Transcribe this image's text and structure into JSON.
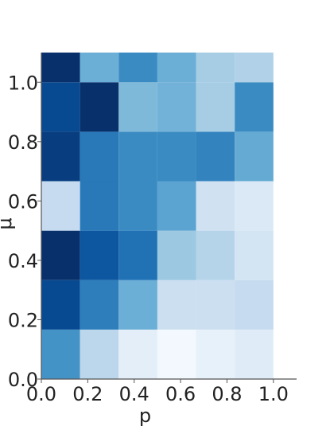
{
  "chart_data": {
    "type": "heatmap",
    "title": "",
    "xlabel": "p",
    "ylabel": "μ",
    "xlim": [
      0.0,
      1.1
    ],
    "ylim": [
      0.0,
      1.1
    ],
    "x_ticks": [
      "0.0",
      "0.2",
      "0.4",
      "0.6",
      "0.8",
      "1.0"
    ],
    "y_ticks": [
      "0.0",
      "0.2",
      "0.4",
      "0.6",
      "0.8",
      "1.0"
    ],
    "x_edges": [
      0.0,
      0.1667,
      0.3333,
      0.5,
      0.6667,
      0.8333,
      1.0
    ],
    "y_edges": [
      0.0,
      0.1667,
      0.3333,
      0.5,
      0.6667,
      0.8333,
      1.0,
      1.1
    ],
    "colormap": "Blues",
    "grid": false,
    "values": [
      [
        0.62,
        0.28,
        0.1,
        0.02,
        0.08,
        0.12
      ],
      [
        0.9,
        0.7,
        0.5,
        0.22,
        0.22,
        0.25
      ],
      [
        1.0,
        0.85,
        0.75,
        0.38,
        0.3,
        0.18
      ],
      [
        0.25,
        0.72,
        0.65,
        0.55,
        0.2,
        0.14
      ],
      [
        0.95,
        0.72,
        0.65,
        0.65,
        0.68,
        0.52
      ],
      [
        0.9,
        1.0,
        0.45,
        0.48,
        0.35,
        0.65
      ],
      [
        1.0,
        0.5,
        0.65,
        0.5,
        0.35,
        0.32
      ]
    ]
  }
}
